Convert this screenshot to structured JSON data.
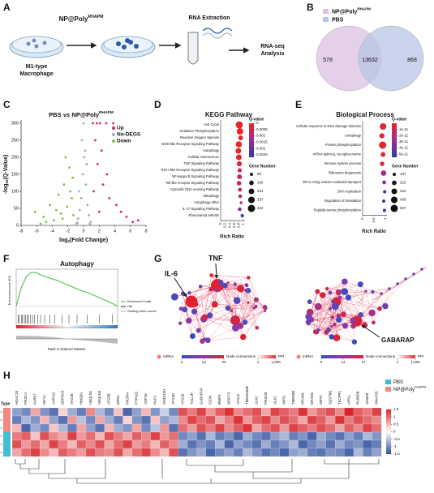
{
  "panel_labels": [
    "A",
    "B",
    "C",
    "D",
    "E",
    "F",
    "G",
    "H"
  ],
  "workflow": {
    "treatment": [
      "NP@Poly",
      "RHAPM"
    ],
    "cell": [
      "M1-type",
      "Macrophage"
    ],
    "extraction": "RNA Extraction",
    "analysis": [
      "RNA-seq",
      "Analysis"
    ]
  },
  "chart_data": [
    {
      "type": "venn",
      "series": [
        {
          "name": [
            "NP@Poly",
            "RHAPM"
          ],
          "color": "#dcc0e2"
        },
        {
          "name": [
            "PBS"
          ],
          "color": "#b7c5e6"
        }
      ],
      "values": [
        578,
        13632,
        868
      ]
    },
    {
      "type": "scatter",
      "title": [
        "PBS",
        "vs",
        "NP@Poly",
        "RHAPM"
      ],
      "xlabel": [
        "log",
        "2",
        "(Fold Change)"
      ],
      "ylabel": [
        "-log",
        "10",
        "(Q-Value)"
      ],
      "xlim": [
        -8,
        8
      ],
      "xticks": [
        -8,
        -6,
        -4,
        -2,
        0,
        2,
        4,
        6,
        8
      ],
      "ylim": [
        0,
        300
      ],
      "yticks": [
        0,
        50,
        100,
        150,
        200,
        250,
        300
      ],
      "series": [
        {
          "name": "Up",
          "color": "#e0245e",
          "x": [
            1.2,
            1.5,
            1.8,
            2.1,
            2.5,
            2.9,
            3.3,
            3.8,
            4.2,
            4.8,
            5.5,
            6.3,
            1.3,
            2.3,
            3.0,
            1.7,
            2.0,
            7.0
          ],
          "values": [
            300,
            250,
            180,
            300,
            120,
            300,
            80,
            300,
            60,
            40,
            25,
            10,
            100,
            220,
            150,
            300,
            40,
            15
          ]
        },
        {
          "name": "No-DEGS",
          "color": "#a7aabb",
          "x": [
            -0.9,
            -0.7,
            -0.5,
            -0.3,
            -0.1,
            0.1,
            0.3,
            0.5,
            0.7,
            0.9,
            -0.6,
            0.4,
            -0.2,
            0.2,
            0,
            -0.8,
            0.8
          ],
          "values": [
            5,
            20,
            45,
            80,
            150,
            200,
            120,
            60,
            30,
            10,
            100,
            180,
            250,
            220,
            300,
            8,
            4
          ]
        },
        {
          "name": "Down",
          "color": "#7cc04a",
          "x": [
            -6.2,
            -5.1,
            -4.3,
            -3.8,
            -3.2,
            -2.9,
            -2.5,
            -2.1,
            -1.8,
            -1.5,
            -1.3,
            -4.8,
            -3.5,
            -2.3,
            -1.7,
            -5.5,
            -2.7,
            -1.4
          ],
          "values": [
            40,
            25,
            60,
            15,
            90,
            35,
            120,
            55,
            170,
            80,
            30,
            10,
            45,
            200,
            100,
            5,
            20,
            140
          ]
        }
      ]
    },
    {
      "type": "dot",
      "title": "KEGG Pathway",
      "categories": [
        "Cell Cycle",
        "Oxidative Phosphorylation",
        "Reactive Oxygen Species",
        "NOD-like Receptor Signaling Pathway",
        "Autophagy",
        "Cellular Senescence",
        "TNF Signaling Pathway",
        "RIG-I-like Receptor Signaling Pathway",
        "NF-kappa B Signaling Pathway",
        "Toll-like receptor Signaling Pathway",
        "Cytosolic DNA-sensing Pathway",
        "Mitophagy",
        "Autophagy-other",
        "IL-17 Signaling Pathway",
        "Rheumatoid arthritis"
      ],
      "values": [
        0.82,
        0.85,
        0.88,
        0.8,
        0.78,
        0.8,
        0.82,
        0.84,
        0.83,
        0.81,
        0.85,
        0.86,
        0.9,
        0.84,
        0.95
      ],
      "sizes": [
        400,
        330,
        180,
        300,
        250,
        260,
        200,
        140,
        180,
        170,
        120,
        110,
        60,
        110,
        90
      ],
      "q": [
        0,
        0,
        0.0001,
        0,
        0.0001,
        0.0001,
        0.0002,
        0.0004,
        0.0005,
        0.0006,
        0.0008,
        0.0009,
        0.0012,
        0.0016,
        0.0025
      ],
      "xlabel": "Rich Ratio",
      "xlim": [
        0,
        1
      ],
      "xticks": [
        0,
        0.2,
        0.4,
        0.6,
        0.8,
        1
      ],
      "color_title": "Q-value",
      "qlim": [
        0,
        0.0027
      ],
      "qticks": [
        0,
        0.0005,
        0.001,
        0.0015,
        0.002,
        0.0025
      ],
      "size_title": "Gene Number",
      "size_ticks": [
        80,
        166,
        251,
        337,
        422
      ]
    },
    {
      "type": "dot",
      "title": "Biological Process",
      "categories": [
        "Cellular response to DNA damage stimulus",
        "Autophagy",
        "Protein phosphorylation",
        "mRNA splicing, via spliceosome",
        "Immune system process",
        "Ribosome biogenesis",
        "ER to Golgi vesicle-mediated transport",
        "DNA replication",
        "Regulation of translation",
        "Peptidyl-serine phosphorylation"
      ],
      "values": [
        0.9,
        0.85,
        0.88,
        0.9,
        0.86,
        0.92,
        0.95,
        0.97,
        0.93,
        0.96
      ],
      "sizes": [
        430,
        260,
        537,
        230,
        200,
        300,
        150,
        120,
        110,
        107
      ],
      "q": [
        2e-12,
        3e-12,
        1e-12,
        5e-12,
        4e-12,
        2.5e-11,
        3.5e-11,
        4.5e-11,
        5e-11,
        5.4e-11
      ],
      "xlabel": "Rich Ratio",
      "xlim": [
        0,
        1
      ],
      "xticks": [
        0,
        0.5,
        1
      ],
      "color_title": "Q-value",
      "qlim": [
        0,
        5.5e-11
      ],
      "qticks": [
        1e-11,
        2e-11,
        3e-11,
        4e-11,
        5e-11
      ],
      "size_title": "Gene Number",
      "size_ticks": [
        107,
        215,
        322,
        430,
        537
      ]
    },
    {
      "type": "gsea",
      "title": "Autophagy",
      "ylabel": "Enrichment score (ES)",
      "xlabel": "Rank in Ordered Dataset",
      "legend": [
        "Enrichment Profile",
        "Hits",
        "Ranking metric scores"
      ],
      "color": "#3fbf3f",
      "xlim": [
        0,
        100
      ],
      "ylim": [
        -0.1,
        0.6
      ],
      "x": [
        0,
        5,
        10,
        15,
        20,
        25,
        30,
        40,
        50,
        60,
        70,
        80,
        90,
        100
      ],
      "values": [
        0,
        0.3,
        0.48,
        0.55,
        0.54,
        0.5,
        0.47,
        0.42,
        0.35,
        0.28,
        0.22,
        0.15,
        0.08,
        0
      ],
      "hits": [
        2,
        3,
        5,
        6,
        8,
        9,
        11,
        12,
        14,
        16,
        18,
        21,
        24,
        28,
        33,
        38,
        45,
        52,
        60,
        70,
        82,
        95
      ]
    },
    {
      "type": "network",
      "labels": [
        "IL-6",
        "TNF",
        "GABARAP"
      ],
      "legends": [
        {
          "mrna": "mRNA",
          "title": "Node connections",
          "lim": [
            2,
            23
          ],
          "ticks": [
            2,
            13,
            23
          ],
          "ppi": "PPI",
          "ppi_lim": [
            1,
            1000
          ],
          "ppi_ticks": [
            1,
            {
              "value": 1000,
              "label": "1,000"
            }
          ]
        },
        {
          "mrna": "mRNA",
          "title": "Node connections",
          "lim": [
            0,
            27
          ],
          "ticks": [
            0,
            14,
            27
          ],
          "ppi": "PPI",
          "ppi_lim": [
            1,
            1000
          ],
          "ppi_ticks": [
            1,
            {
              "value": 1000,
              "label": "1,000"
            }
          ]
        }
      ]
    },
    {
      "type": "heatmap",
      "type_label": "Type",
      "groups": [
        {
          "name": [
            "PBS"
          ],
          "color": "#3ec1d3"
        },
        {
          "name": [
            "NP@Poly",
            "RHAPM"
          ],
          "color": "#f4877f"
        }
      ],
      "row_group": [
        1,
        1,
        1,
        0,
        0,
        0
      ],
      "clim": [
        -1.5,
        1.5
      ],
      "cticks": [
        1.5,
        1,
        0.5,
        0,
        -0.5,
        -1,
        -1.5
      ],
      "genes": [
        "HDAC10",
        "PIK3CA",
        "PARK7",
        "HIF1A",
        "UVRAG",
        "DEPDC5",
        "ATG2B",
        "HMGB1",
        "UBQLN1",
        "UBQLN4",
        "ATG9B",
        "MFN2",
        "PIK3R4",
        "PTPN22",
        "USP10",
        "HAP1",
        "SH3GLB1",
        "ATG4D",
        "ATG10",
        "TOLLIP",
        "GABARAP",
        "CD34",
        "BNIP3",
        "WDFY3",
        "ATG12",
        "TMEM150B",
        "ULK1",
        "PIK3CB",
        "ULK2",
        "WIPI1",
        "TMEM59",
        "DRAM1",
        "DRAM2",
        "WIPI2",
        "SQSTM1",
        "TECPR1",
        "ARSA",
        "RAB39B",
        "VAMP8",
        "SNAP29"
      ],
      "rows": [
        [
          -0.8,
          -1.0,
          0.6,
          -0.9,
          -1.2,
          0.3,
          -0.7,
          -1.1,
          0.8,
          -0.6,
          -1.0,
          0.4,
          -1.3,
          -0.8,
          0.5,
          -0.9,
          -0.4,
          -1.0,
          1.2,
          0.9,
          1.3,
          0.7,
          1.1,
          1.4,
          0.8,
          1.0,
          1.2,
          0.6,
          1.3,
          1.1,
          0.9,
          1.4,
          0.7,
          1.0,
          1.2,
          0.8,
          1.5,
          1.1,
          0.9,
          1.3
        ],
        [
          -1.1,
          -0.6,
          -0.9,
          0.5,
          -0.8,
          -1.2,
          0.7,
          -0.5,
          -1.0,
          0.6,
          -0.7,
          -1.1,
          0.3,
          -0.9,
          -1.2,
          0.4,
          -0.8,
          -0.6,
          0.8,
          1.3,
          1.0,
          1.2,
          0.6,
          0.9,
          1.4,
          0.7,
          1.1,
          1.3,
          0.8,
          1.2,
          1.0,
          0.6,
          1.3,
          1.1,
          0.7,
          1.4,
          0.9,
          1.2,
          1.0,
          0.8
        ],
        [
          0.5,
          -1.3,
          -0.7,
          -1.0,
          0.4,
          -0.6,
          -1.1,
          0.6,
          -0.8,
          -1.2,
          0.5,
          -0.7,
          -0.9,
          0.6,
          -1.0,
          -0.5,
          0.7,
          -1.2,
          1.0,
          0.7,
          1.2,
          0.9,
          1.3,
          0.8,
          1.1,
          1.4,
          0.6,
          1.0,
          1.2,
          0.7,
          1.3,
          1.1,
          0.9,
          1.2,
          1.0,
          0.6,
          1.1,
          0.8,
          1.3,
          1.0
        ],
        [
          0.9,
          1.1,
          0.4,
          1.2,
          0.8,
          0.6,
          1.3,
          0.7,
          1.0,
          0.5,
          1.2,
          0.9,
          0.6,
          1.1,
          0.8,
          1.3,
          0.7,
          1.0,
          -1.0,
          -0.8,
          -1.2,
          -0.6,
          -1.1,
          -0.9,
          -1.3,
          -0.7,
          -1.0,
          -1.2,
          -0.8,
          -0.6,
          -1.1,
          -0.9,
          -1.3,
          -0.7,
          -1.0,
          -1.2,
          -0.8,
          -1.1,
          -0.6,
          -0.9
        ],
        [
          1.2,
          0.7,
          1.0,
          0.6,
          1.3,
          0.9,
          0.5,
          1.1,
          0.8,
          1.2,
          0.6,
          1.0,
          1.3,
          0.7,
          0.9,
          0.5,
          1.1,
          0.8,
          -0.7,
          -1.2,
          -0.9,
          -1.1,
          -0.6,
          -1.3,
          -0.8,
          -1.0,
          -1.2,
          -0.7,
          -1.1,
          -0.9,
          -0.6,
          -1.3,
          -1.0,
          -0.8,
          -1.2,
          -0.7,
          -1.0,
          -0.9,
          -1.3,
          -1.1
        ],
        [
          0.6,
          1.0,
          1.3,
          0.8,
          0.5,
          1.1,
          0.9,
          0.7,
          1.2,
          0.9,
          0.8,
          1.2,
          0.6,
          1.0,
          1.3,
          0.8,
          0.5,
          1.2,
          -1.2,
          -0.9,
          -0.7,
          -1.3,
          -1.0,
          -0.8,
          -1.1,
          -0.6,
          -0.9,
          -1.2,
          -1.0,
          -1.3,
          -0.8,
          -0.7,
          -1.1,
          -1.2,
          -0.9,
          -1.0,
          -1.3,
          -0.6,
          -1.1,
          -0.8
        ]
      ]
    }
  ]
}
